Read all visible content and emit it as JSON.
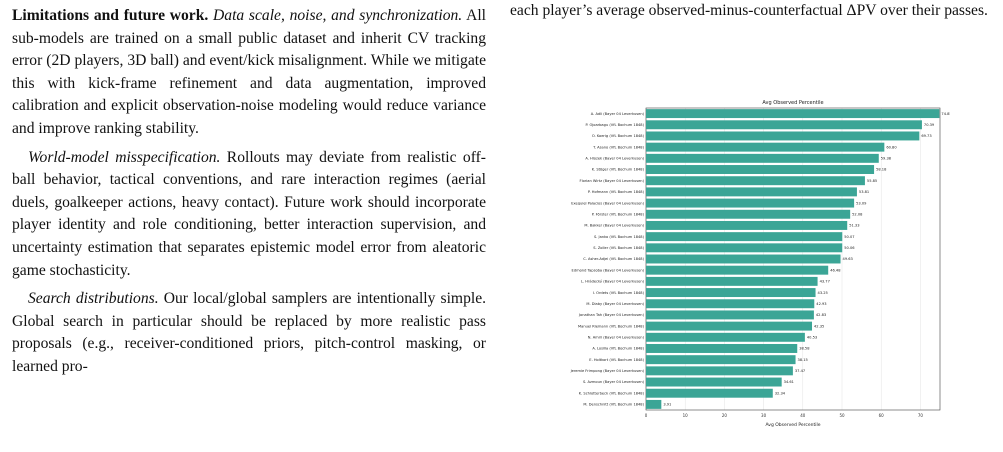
{
  "left_column": {
    "p1_heading": "Limitations and future work.",
    "p1_subheading": "Data scale, noise, and synchronization.",
    "p1_text": "All sub-models are trained on a small public dataset and inherit CV tracking error (2D players, 3D ball) and event/kick misalignment. While we mitigate this with kick-frame refinement and data augmentation, improved calibration and explicit observation-noise modeling would reduce variance and improve ranking stability.",
    "p2_subheading": "World-model misspecification.",
    "p2_text": "Rollouts may deviate from realistic off-ball behavior, tactical conventions, and rare interaction regimes (aerial duels, goalkeeper actions, heavy contact). Future work should incorporate player identity and role conditioning, better interaction supervision, and uncertainty estimation that separates epistemic model error from aleatoric game stochasticity.",
    "p3_subheading": "Search distributions.",
    "p3_text": "Our local/global samplers are intentionally simple. Global search in particular should be replaced by more realistic pass proposals (e.g., receiver-conditioned priors, pitch-control masking, or learned pro-"
  },
  "right_column": {
    "text": "each player’s average observed-minus-counterfactual ΔPV over their passes."
  },
  "chart_data": {
    "type": "bar",
    "orientation": "horizontal",
    "title": "Avg Observed Percentile",
    "xlabel": "Avg Observed Percentile",
    "ylabel": "",
    "xlim": [
      0,
      75
    ],
    "xticks": [
      0,
      10,
      20,
      30,
      40,
      50,
      60,
      70
    ],
    "grid": "x",
    "bar_color": "#3ba596",
    "categories": [
      "A. Adli (Bayer 04 Leverkusen)",
      "P. Ojoarbagu (VfL Bochum 1848)",
      "O. Koerig (VfL Bochum 1848)",
      "T. Asano (VfL Bochum 1848)",
      "A. Hlozek (Bayer 04 Leverkusen)",
      "K. Stöger (VfL Bochum 1848)",
      "Florian Wirtz (Bayer 04 Leverkusen)",
      "P. Hofmann (VfL Bochum 1848)",
      "Exequiel Palacios (Bayer 04 Leverkusen)",
      "P. Förster (VfL Bochum 1848)",
      "M. Bakker (Bayer 04 Leverkusen)",
      "S. Janko (VfL Bochum 1848)",
      "S. Zoller (VfL Bochum 1848)",
      "C. Asher-Adjei (VfL Bochum 1848)",
      "Edmond Tapsoba (Bayer 04 Leverkusen)",
      "L. Hrádecký (Bayer 04 Leverkusen)",
      "I. Ordets (VfL Bochum 1848)",
      "M. Diaby (Bayer 04 Leverkusen)",
      "Jonathan Tah (Bayer 04 Leverkusen)",
      "Manuel Riemann (VfL Bochum 1848)",
      "N. Amiri (Bayer 04 Leverkusen)",
      "A. Losilla (VfL Bochum 1848)",
      "E. Holtkort (VfL Bochum 1848)",
      "Jeremie Frimpong (Bayer 04 Leverkusen)",
      "S. Azmoun (Bayer 04 Leverkusen)",
      "K. Schlotterbeck (VfL Bochum 1848)",
      "M. Denschnitt (VfL Bochum 1848)"
    ],
    "values": [
      74.85,
      70.39,
      69.73,
      60.8,
      59.38,
      58.18,
      55.85,
      53.81,
      53.09,
      52.08,
      51.33,
      50.07,
      50.06,
      49.63,
      46.48,
      43.77,
      43.25,
      42.93,
      42.83,
      42.35,
      40.53,
      38.58,
      38.15,
      37.47,
      34.61,
      32.34,
      3.91
    ],
    "value_labels": [
      "74.85",
      "70.39",
      "69.73",
      "60.80",
      "59.38",
      "58.18",
      "55.85",
      "53.81",
      "53.09",
      "52.08",
      "51.33",
      "50.07",
      "50.06",
      "49.63",
      "46.48",
      "43.77",
      "43.25",
      "42.93",
      "42.83",
      "42.35",
      "40.53",
      "38.58",
      "38.15",
      "37.47",
      "34.61",
      "32.34",
      "3.91"
    ]
  }
}
